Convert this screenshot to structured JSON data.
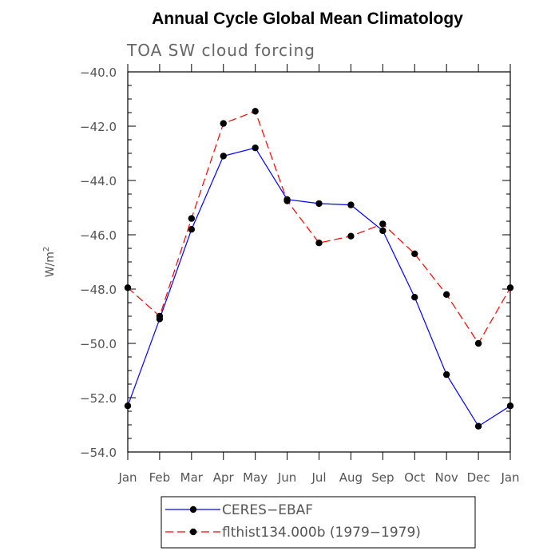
{
  "chart_data": {
    "type": "line",
    "title": "Annual Cycle Global Mean Climatology",
    "subtitle": "TOA SW cloud forcing",
    "ylabel_text": "W/m",
    "ylabel_sup": "2",
    "xlabel": "",
    "categories": [
      "Jan",
      "Feb",
      "Mar",
      "Apr",
      "May",
      "Jun",
      "Jul",
      "Aug",
      "Sep",
      "Oct",
      "Nov",
      "Dec",
      "Jan"
    ],
    "ylim": [
      -54.0,
      -40.0
    ],
    "yticks": [
      -54.0,
      -52.0,
      -50.0,
      -48.0,
      -46.0,
      -44.0,
      -42.0,
      -40.0
    ],
    "ytick_labels": [
      "−54.0",
      "−52.0",
      "−50.0",
      "−48.0",
      "−46.0",
      "−44.0",
      "−42.0",
      "−40.0"
    ],
    "grid": false,
    "legend_position": "bottom",
    "series": [
      {
        "name": "CERES−EBAF",
        "color": "#0000ff",
        "dash": "solid",
        "marker": "circle",
        "values": [
          -52.3,
          -49.1,
          -45.8,
          -43.1,
          -42.8,
          -44.7,
          -44.85,
          -44.9,
          -45.85,
          -48.3,
          -51.15,
          -53.05,
          -52.3
        ]
      },
      {
        "name": "flthist134.000b (1979−1979)",
        "color": "#ff0000",
        "dash": "dashed",
        "marker": "circle",
        "values": [
          -47.95,
          -49.0,
          -45.4,
          -41.9,
          -41.45,
          -44.75,
          -46.3,
          -46.05,
          -45.6,
          -46.7,
          -48.2,
          -50.0,
          -47.95
        ]
      }
    ]
  }
}
